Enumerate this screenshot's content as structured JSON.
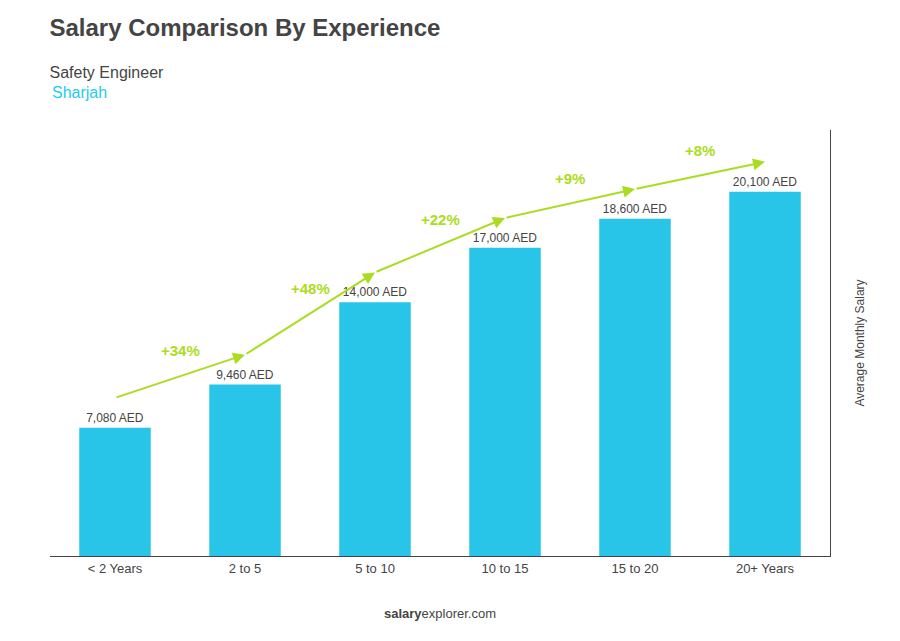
{
  "chart_data": {
    "type": "bar",
    "title": "Salary Comparison By Experience",
    "subtitle": "Safety Engineer",
    "city": {
      "text": "Sharjah",
      "color": "#22CCEE"
    },
    "ylabel": "Average Monthly Salary",
    "categories": [
      "< 2 Years",
      "2 to 5",
      "5 to 10",
      "10 to 15",
      "15 to 20",
      "20+ Years"
    ],
    "values": [
      7080,
      9460,
      14000,
      17000,
      18600,
      20100
    ],
    "value_labels": [
      "7,080 AED",
      "9,460 AED",
      "14,000 AED",
      "17,000 AED",
      "18,600 AED",
      "20,100 AED"
    ],
    "data_labels": true,
    "color": "#29C5E8",
    "annotations": [
      {
        "text": "+34%",
        "color": "#AADD22"
      },
      {
        "text": "+48%",
        "color": "#AADD22"
      },
      {
        "text": "+22%",
        "color": "#AADD22"
      },
      {
        "text": "+9%",
        "color": "#AADD22"
      },
      {
        "text": "+8%",
        "color": "#AADD22"
      }
    ],
    "source": [
      "salary",
      "explorer.com"
    ],
    "ylim": [
      0,
      23500
    ],
    "yticks": [],
    "grid": false,
    "tick_labels": "x"
  }
}
